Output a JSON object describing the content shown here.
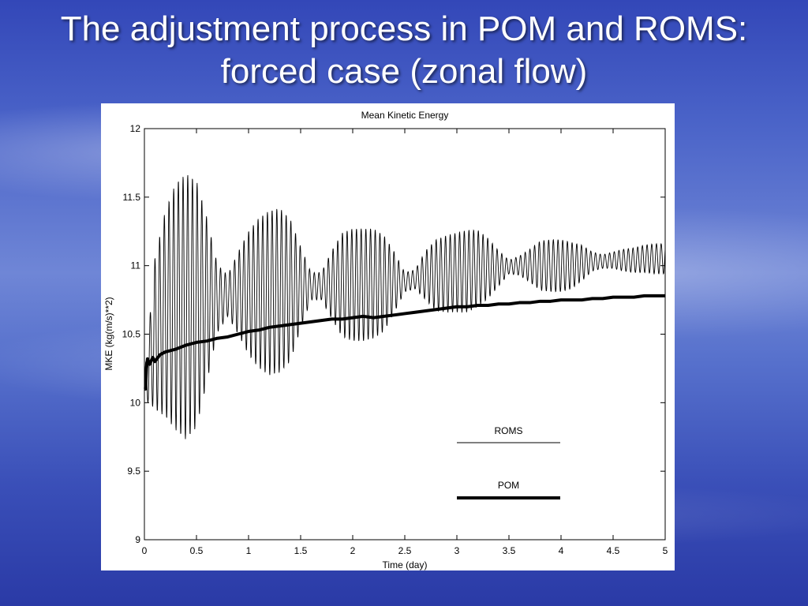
{
  "slide": {
    "title_line1": "The adjustment process in POM and ROMS:",
    "title_line2": "forced case (zonal flow)"
  },
  "chart_data": {
    "type": "line",
    "title": "Mean Kinetic Energy",
    "xlabel": "Time (day)",
    "ylabel": "MKE (kg(m/s)**2)",
    "xlim": [
      0,
      5
    ],
    "ylim": [
      9,
      12
    ],
    "xticks": [
      0,
      0.5,
      1,
      1.5,
      2,
      2.5,
      3,
      3.5,
      4,
      4.5,
      5
    ],
    "xtick_labels": [
      "0",
      "0.5",
      "1",
      "1.5",
      "2",
      "2.5",
      "3",
      "3.5",
      "4",
      "4.5",
      "5"
    ],
    "yticks": [
      9,
      9.5,
      10,
      10.5,
      11,
      11.5,
      12
    ],
    "ytick_labels": [
      "9",
      "9.5",
      "10",
      "10.5",
      "11",
      "11.5",
      "12"
    ],
    "grid": false,
    "legend_position": "bottom-right",
    "series": [
      {
        "name": "ROMS",
        "style": "thin",
        "color": "#000000",
        "description_values": {
          "x": [
            0,
            0.05,
            0.1,
            0.2,
            0.3,
            0.4,
            0.5,
            0.6,
            0.7,
            0.8,
            0.9,
            1.0,
            1.1,
            1.2,
            1.3,
            1.4,
            1.5,
            1.6,
            1.7,
            1.8,
            1.9,
            2.0,
            2.1,
            2.2,
            2.3,
            2.4,
            2.5,
            2.6,
            2.7,
            2.8,
            2.9,
            3.0,
            3.1,
            3.2,
            3.3,
            3.4,
            3.5,
            3.6,
            3.7,
            3.8,
            3.9,
            4.0,
            4.1,
            4.2,
            4.3,
            4.4,
            4.5,
            4.6,
            4.7,
            4.8,
            4.9,
            5.0
          ],
          "mean": [
            10.1,
            10.3,
            10.5,
            10.65,
            10.7,
            10.7,
            10.72,
            10.75,
            10.76,
            10.78,
            10.8,
            10.8,
            10.8,
            10.8,
            10.82,
            10.82,
            10.84,
            10.85,
            10.85,
            10.86,
            10.86,
            10.86,
            10.86,
            10.87,
            10.87,
            10.88,
            10.88,
            10.9,
            10.93,
            10.93,
            10.94,
            10.95,
            10.96,
            10.98,
            10.98,
            10.98,
            10.99,
            11.0,
            11.0,
            11.0,
            11.0,
            11.0,
            11.0,
            11.02,
            11.03,
            11.03,
            11.04,
            11.04,
            11.04,
            11.05,
            11.05,
            11.05
          ],
          "amplitude": [
            0.1,
            0.3,
            0.55,
            0.75,
            0.9,
            0.97,
            0.9,
            0.6,
            0.25,
            0.15,
            0.3,
            0.45,
            0.55,
            0.6,
            0.6,
            0.52,
            0.3,
            0.1,
            0.1,
            0.25,
            0.38,
            0.41,
            0.41,
            0.4,
            0.35,
            0.22,
            0.07,
            0.07,
            0.18,
            0.26,
            0.28,
            0.29,
            0.3,
            0.28,
            0.22,
            0.13,
            0.05,
            0.07,
            0.12,
            0.18,
            0.19,
            0.19,
            0.17,
            0.13,
            0.07,
            0.05,
            0.06,
            0.08,
            0.09,
            0.1,
            0.11,
            0.11
          ],
          "oscillation_period_day": 0.045
        }
      },
      {
        "name": "POM",
        "style": "thick",
        "color": "#000000",
        "x": [
          0,
          0.01,
          0.02,
          0.03,
          0.05,
          0.08,
          0.1,
          0.15,
          0.2,
          0.3,
          0.4,
          0.5,
          0.6,
          0.7,
          0.8,
          0.9,
          1.0,
          1.1,
          1.2,
          1.3,
          1.4,
          1.5,
          1.6,
          1.7,
          1.8,
          1.9,
          2.0,
          2.1,
          2.2,
          2.3,
          2.4,
          2.5,
          2.6,
          2.7,
          2.8,
          2.9,
          3.0,
          3.1,
          3.2,
          3.3,
          3.4,
          3.5,
          3.6,
          3.7,
          3.8,
          3.9,
          4.0,
          4.1,
          4.2,
          4.3,
          4.4,
          4.5,
          4.6,
          4.7,
          4.8,
          4.9,
          5.0
        ],
        "y": [
          10.1,
          10.1,
          10.25,
          10.32,
          10.28,
          10.33,
          10.3,
          10.35,
          10.37,
          10.39,
          10.42,
          10.44,
          10.45,
          10.47,
          10.48,
          10.5,
          10.52,
          10.53,
          10.55,
          10.56,
          10.57,
          10.58,
          10.59,
          10.6,
          10.61,
          10.61,
          10.62,
          10.63,
          10.62,
          10.63,
          10.64,
          10.65,
          10.66,
          10.67,
          10.68,
          10.69,
          10.7,
          10.7,
          10.71,
          10.71,
          10.72,
          10.72,
          10.73,
          10.73,
          10.74,
          10.74,
          10.75,
          10.75,
          10.75,
          10.76,
          10.76,
          10.77,
          10.77,
          10.77,
          10.78,
          10.78,
          10.78
        ]
      }
    ]
  }
}
